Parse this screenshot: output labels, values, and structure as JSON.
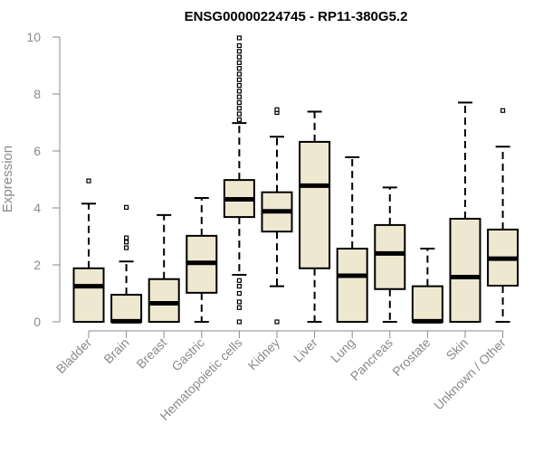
{
  "chart_data": {
    "type": "boxplot",
    "title": "ENSG00000224745 - RP11-380G5.2",
    "ylabel": "Expression",
    "xlabel": "",
    "ylim": [
      0,
      10
    ],
    "yticks": [
      0,
      2,
      4,
      6,
      8,
      10
    ],
    "grid": false,
    "box_fill": "#efe8d0",
    "box_stroke": "#000000",
    "axis_color": "#8a8a8a",
    "categories": [
      "Bladder",
      "Brain",
      "Breast",
      "Gastric",
      "Hematopoietic cells",
      "Kidney",
      "Liver",
      "Lung",
      "Pancreas",
      "Prostate",
      "Skin",
      "Unknown / Other"
    ],
    "boxes": [
      {
        "whisker_low": 0,
        "q1": 0,
        "median": 1.25,
        "q3": 1.88,
        "whisker_high": 4.15,
        "outliers": [
          4.95
        ]
      },
      {
        "whisker_low": 0,
        "q1": 0,
        "median": 0.02,
        "q3": 0.95,
        "whisker_high": 2.12,
        "outliers": [
          2.6,
          2.8,
          2.95,
          4.02
        ]
      },
      {
        "whisker_low": 0,
        "q1": 0,
        "median": 0.65,
        "q3": 1.5,
        "whisker_high": 3.75,
        "outliers": []
      },
      {
        "whisker_low": 0,
        "q1": 1.02,
        "median": 2.07,
        "q3": 3.02,
        "whisker_high": 4.35,
        "outliers": []
      },
      {
        "whisker_low": 1.65,
        "q1": 3.68,
        "median": 4.3,
        "q3": 4.98,
        "whisker_high": 6.98,
        "outliers": [
          0,
          0.5,
          0.7,
          1.0,
          1.25,
          1.45,
          7.1,
          7.3,
          7.5,
          7.7,
          7.9,
          8.1,
          8.3,
          8.5,
          8.7,
          8.9,
          9.1,
          9.3,
          9.5,
          9.7,
          9.97
        ]
      },
      {
        "whisker_low": 1.25,
        "q1": 3.17,
        "median": 3.88,
        "q3": 4.55,
        "whisker_high": 6.5,
        "outliers": [
          0,
          7.35,
          7.45
        ]
      },
      {
        "whisker_low": 0,
        "q1": 1.88,
        "median": 4.78,
        "q3": 6.32,
        "whisker_high": 7.38,
        "outliers": []
      },
      {
        "whisker_low": 0,
        "q1": 0,
        "median": 1.62,
        "q3": 2.57,
        "whisker_high": 5.78,
        "outliers": []
      },
      {
        "whisker_low": 0,
        "q1": 1.15,
        "median": 2.4,
        "q3": 3.4,
        "whisker_high": 4.72,
        "outliers": []
      },
      {
        "whisker_low": 0,
        "q1": 0,
        "median": 0.02,
        "q3": 1.25,
        "whisker_high": 2.57,
        "outliers": []
      },
      {
        "whisker_low": 0,
        "q1": 0,
        "median": 1.57,
        "q3": 3.62,
        "whisker_high": 7.7,
        "outliers": []
      },
      {
        "whisker_low": 0,
        "q1": 1.27,
        "median": 2.22,
        "q3": 3.24,
        "whisker_high": 6.15,
        "outliers": [
          7.42
        ]
      }
    ]
  }
}
